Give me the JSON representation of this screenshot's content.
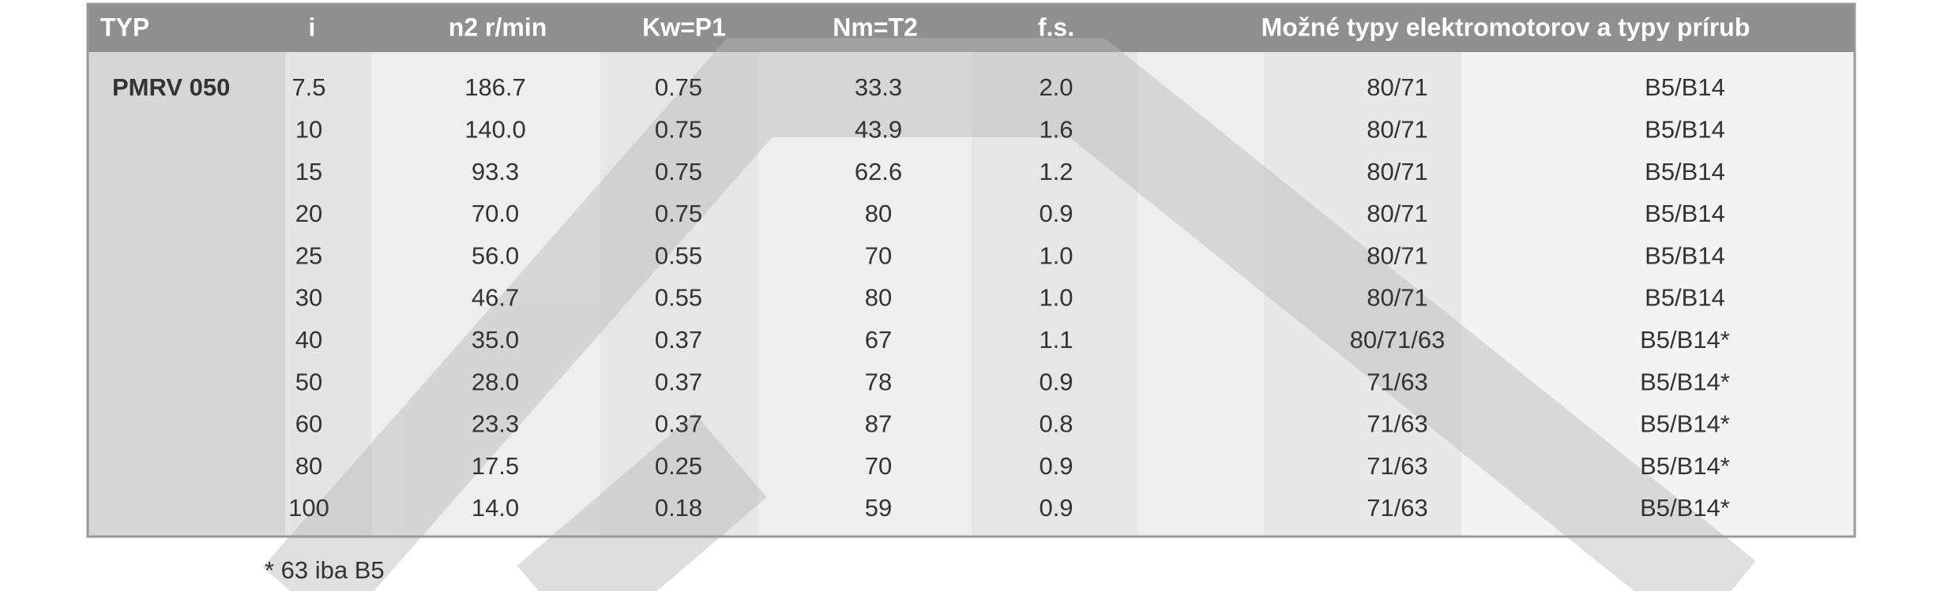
{
  "header": {
    "columns": [
      "TYP",
      "i",
      "n2 r/min",
      "Kw=P1",
      "Nm=T2",
      "f.s.",
      "Možné typy elektromotorov a typy prírub"
    ]
  },
  "table": {
    "type_label": "PMRV 050",
    "rows": [
      [
        "7.5",
        "186.7",
        "0.75",
        "33.3",
        "2.0",
        "80/71",
        "B5/B14"
      ],
      [
        "10",
        "140.0",
        "0.75",
        "43.9",
        "1.6",
        "80/71",
        "B5/B14"
      ],
      [
        "15",
        "93.3",
        "0.75",
        "62.6",
        "1.2",
        "80/71",
        "B5/B14"
      ],
      [
        "20",
        "70.0",
        "0.75",
        "80",
        "0.9",
        "80/71",
        "B5/B14"
      ],
      [
        "25",
        "56.0",
        "0.55",
        "70",
        "1.0",
        "80/71",
        "B5/B14"
      ],
      [
        "30",
        "46.7",
        "0.55",
        "80",
        "1.0",
        "80/71",
        "B5/B14"
      ],
      [
        "40",
        "35.0",
        "0.37",
        "67",
        "1.1",
        "80/71/63",
        "B5/B14*"
      ],
      [
        "50",
        "28.0",
        "0.37",
        "78",
        "0.9",
        "71/63",
        "B5/B14*"
      ],
      [
        "60",
        "23.3",
        "0.37",
        "87",
        "0.8",
        "71/63",
        "B5/B14*"
      ],
      [
        "80",
        "17.5",
        "0.25",
        "70",
        "0.9",
        "71/63",
        "B5/B14*"
      ],
      [
        "100",
        "14.0",
        "0.18",
        "59",
        "0.9",
        "71/63",
        "B5/B14*"
      ]
    ]
  },
  "footnote": "* 63 iba B5"
}
